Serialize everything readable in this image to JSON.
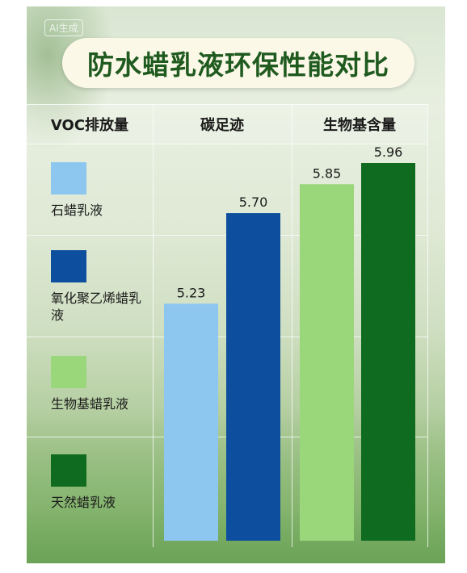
{
  "watermark": "AI生成",
  "title": "防水蜡乳液环保性能对比",
  "headers": [
    "VOC排放量",
    "碳足迹",
    "生物基含量"
  ],
  "colors": {
    "series": [
      "#8dc6ef",
      "#0d4f9e",
      "#9ad67a",
      "#0f6b1f"
    ],
    "title": "#1f5a1f"
  },
  "chart_data": {
    "type": "bar",
    "categories": [
      "碳足迹",
      "生物基含量"
    ],
    "series": [
      {
        "name": "石蜡乳液",
        "values": [
          5.23,
          null
        ]
      },
      {
        "name": "氧化聚乙烯蜡乳液",
        "values": [
          5.7,
          null
        ]
      },
      {
        "name": "生物基蜡乳液",
        "values": [
          null,
          5.85
        ]
      },
      {
        "name": "天然蜡乳液",
        "values": [
          null,
          5.96
        ]
      }
    ],
    "title": "防水蜡乳液环保性能对比",
    "xlabel": "",
    "ylabel": "",
    "grid": true,
    "legend": "left"
  }
}
